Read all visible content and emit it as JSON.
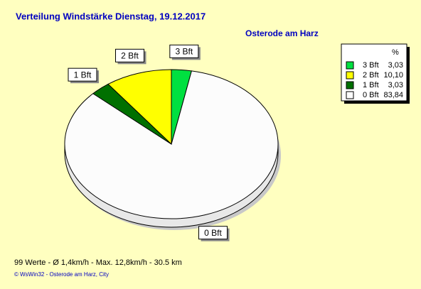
{
  "chart_data": {
    "type": "pie",
    "title": "Verteilung Windstärke  Dienstag, 19.12.2017",
    "subtitle": "Osterode am Harz",
    "legend_header": "%",
    "categories": [
      "3 Bft",
      "2 Bft",
      "1 Bft",
      "0 Bft"
    ],
    "values": [
      3.03,
      10.1,
      3.03,
      83.84
    ],
    "value_labels": [
      "3,03",
      "10,10",
      "3,03",
      "83,84"
    ],
    "colors": [
      "#00e040",
      "#ffff00",
      "#007000",
      "#fcfcfc"
    ],
    "footer": "99 Werte  -  Ø 1,4km/h  -  Max. 12,8km/h  -  30.5 km",
    "copyright": "© WsWin32  -  Osterode am Harz, City"
  }
}
